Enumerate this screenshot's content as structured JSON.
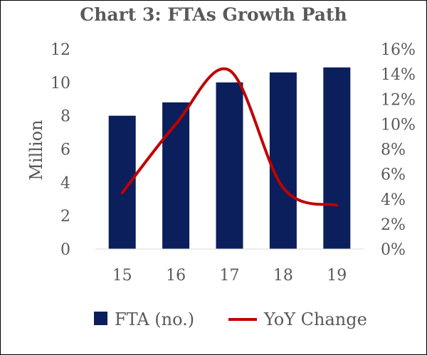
{
  "chart_data": {
    "type": "bar",
    "title": "Chart 3: FTAs Growth Path",
    "categories": [
      "15",
      "16",
      "17",
      "18",
      "19"
    ],
    "series": [
      {
        "name": "FTA (no.)",
        "type": "bar",
        "axis": "left",
        "values": [
          8.0,
          8.8,
          10.0,
          10.6,
          10.9
        ]
      },
      {
        "name": "YoY Change",
        "type": "line",
        "axis": "right",
        "smooth": true,
        "values": [
          4.5,
          10.0,
          14.3,
          4.9,
          3.5
        ]
      }
    ],
    "ylabel": "Million",
    "xlabel": "",
    "ylim": [
      0,
      12
    ],
    "y_ticks": [
      "0",
      "2",
      "4",
      "6",
      "8",
      "10",
      "12"
    ],
    "y2lim": [
      0,
      16
    ],
    "y2_ticks": [
      "0%",
      "2%",
      "4%",
      "6%",
      "8%",
      "10%",
      "12%",
      "14%",
      "16%"
    ],
    "legend_position": "bottom",
    "grid": false,
    "colors": {
      "bar": "#0a1f5c",
      "line": "#c00000",
      "text": "#595959",
      "title": "#595959",
      "axis": "#d9d9d9"
    }
  }
}
